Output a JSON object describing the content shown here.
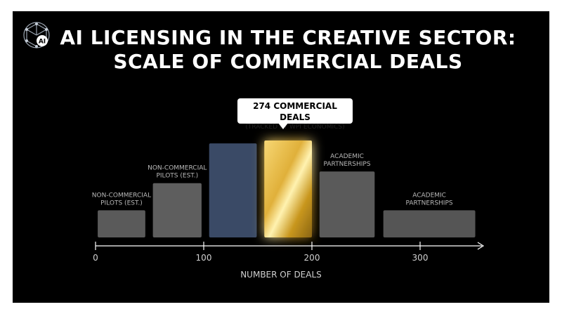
{
  "logo": {
    "icon": "ai-network-logo-icon",
    "text": "AI"
  },
  "title": {
    "line1": "AI LICENSING IN THE CREATIVE SECTOR:",
    "line2": "SCALE OF COMMERCIAL DEALS"
  },
  "callout": {
    "line1": "274 COMMERCIAL DEALS",
    "line2": "(TRACKED BY WPI ECONOMICS)"
  },
  "chart_data": {
    "type": "bar",
    "xlabel": "NUMBER OF DEALS",
    "xlim": [
      0,
      360
    ],
    "x_ticks": [
      0,
      100,
      200,
      300
    ],
    "x_tick_labels": [
      "0",
      "100",
      "200",
      "300"
    ],
    "ylim": [
      0,
      1
    ],
    "grid": false,
    "bars": [
      {
        "x0": 2,
        "x1": 46,
        "value": 0.28,
        "color": "#5a5a5a",
        "label": [
          "NON-COMMERCIAL",
          "PILOTS (EST.)"
        ]
      },
      {
        "x0": 53,
        "x1": 98,
        "value": 0.56,
        "color": "#5e5e5e",
        "label": [
          "NON-COMMERCIAL",
          "PILOTS (EST.)"
        ]
      },
      {
        "x0": 105,
        "x1": 149,
        "value": 0.97,
        "color": "#3a4a66",
        "label": []
      },
      {
        "x0": 156,
        "x1": 200,
        "value": 1.0,
        "color": "#c9a227",
        "label": []
      },
      {
        "x0": 207,
        "x1": 258,
        "value": 0.68,
        "color": "#5a5a5a",
        "label": [
          "ACADEMIC",
          "PARTNERSHIPS"
        ]
      },
      {
        "x0": 266,
        "x1": 351,
        "value": 0.28,
        "color": "#555555",
        "label": [
          "ACADEMIC",
          "PARTNERSHIPS"
        ]
      }
    ]
  }
}
